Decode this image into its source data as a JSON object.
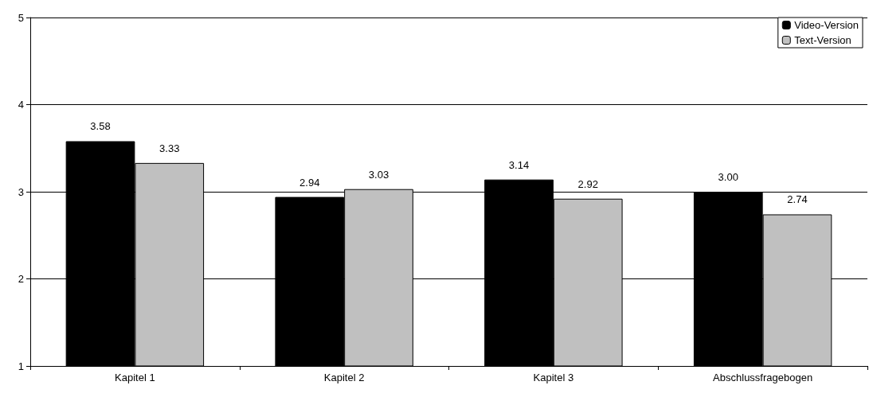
{
  "chart_data": {
    "type": "bar",
    "categories": [
      "Kapitel 1",
      "Kapitel 2",
      "Kapitel 3",
      "Abschlussfragebogen"
    ],
    "series": [
      {
        "name": "Video-Version",
        "color": "#000000",
        "values": [
          3.58,
          2.94,
          3.14,
          3.0
        ],
        "value_labels": [
          "3.58",
          "2.94",
          "3.14",
          "3.00"
        ]
      },
      {
        "name": "Text-Version",
        "color": "#c0c0c0",
        "values": [
          3.33,
          3.03,
          2.92,
          2.74
        ],
        "value_labels": [
          "3.33",
          "3.03",
          "2.92",
          "2.74"
        ]
      }
    ],
    "ylim": [
      1,
      5
    ],
    "yticks": [
      1,
      2,
      3,
      4,
      5
    ],
    "grid": "y",
    "legend": "top right"
  }
}
